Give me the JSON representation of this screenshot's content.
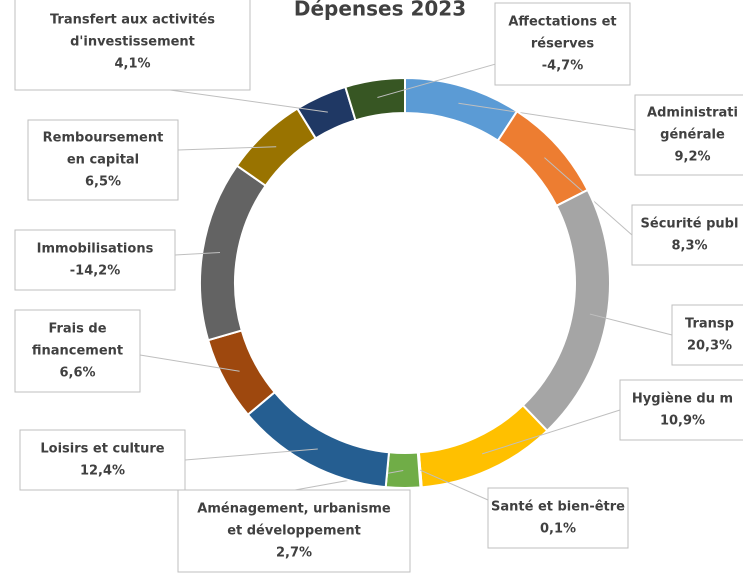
{
  "chart_data": {
    "type": "pie",
    "title": "Dépenses 2023",
    "categories": [
      [
        "Administrati",
        "générale"
      ],
      [
        "Sécurité publ"
      ],
      [
        "Transp"
      ],
      [
        "Hygiène du m"
      ],
      [
        "Santé et bien-être"
      ],
      [
        "Aménagement, urbanisme",
        "et développement"
      ],
      [
        "Loisirs et culture"
      ],
      [
        "Frais de",
        "financement"
      ],
      [
        "Immobilisations"
      ],
      [
        "Remboursement",
        "en capital"
      ],
      [
        "Transfert aux activités",
        "d'investissement"
      ],
      [
        "Affectations et",
        "réserves"
      ]
    ],
    "values": [
      9.2,
      8.3,
      20.3,
      10.9,
      0.1,
      2.7,
      12.4,
      6.6,
      -14.2,
      6.5,
      4.1,
      -4.7
    ],
    "value_labels": [
      "9,2%",
      "8,3%",
      "20,3%",
      "10,9%",
      "0,1%",
      "2,7%",
      "12,4%",
      "6,6%",
      "-14,2%",
      "6,5%",
      "4,1%",
      "-4,7%"
    ],
    "colors": [
      "#5b9bd5",
      "#ed7d31",
      "#a5a5a5",
      "#ffc000",
      "#264478",
      "#70ad47",
      "#255e91",
      "#9e480e",
      "#636363",
      "#997300",
      "#1f3864",
      "#375623"
    ]
  }
}
